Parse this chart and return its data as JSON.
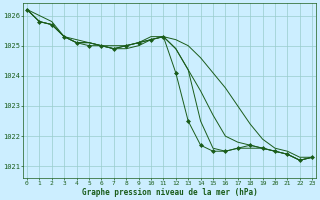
{
  "bg_color": "#cceeff",
  "grid_color": "#99cccc",
  "line_color": "#1a5c1a",
  "marker_color": "#1a5c1a",
  "label_color": "#1a5c1a",
  "xlabel": "Graphe pression niveau de la mer (hPa)",
  "ylim": [
    1020.6,
    1026.4
  ],
  "xlim": [
    -0.3,
    23.3
  ],
  "yticks": [
    1021,
    1022,
    1023,
    1024,
    1025,
    1026
  ],
  "xticks": [
    0,
    1,
    2,
    3,
    4,
    5,
    6,
    7,
    8,
    9,
    10,
    11,
    12,
    13,
    14,
    15,
    16,
    17,
    18,
    19,
    20,
    21,
    22,
    23
  ],
  "series": [
    {
      "y": [
        1026.2,
        1026.0,
        1025.8,
        1025.3,
        1025.2,
        1025.1,
        1025.0,
        1025.0,
        1025.0,
        1025.1,
        1025.3,
        1025.3,
        1025.2,
        1025.0,
        1024.6,
        1024.1,
        1023.6,
        1023.0,
        1022.4,
        1021.9,
        1021.6,
        1021.5,
        1021.3,
        1021.3
      ],
      "marker": false
    },
    {
      "y": [
        1026.2,
        1025.8,
        1025.7,
        1025.3,
        1025.1,
        1025.0,
        1025.0,
        1024.9,
        1025.0,
        1025.1,
        1025.2,
        1025.3,
        1024.1,
        1022.5,
        1021.7,
        1021.5,
        1021.5,
        1021.6,
        1021.7,
        1021.6,
        1021.5,
        1021.4,
        1021.2,
        1021.3
      ],
      "marker": true
    },
    {
      "y": [
        1026.2,
        1025.8,
        1025.7,
        1025.3,
        1025.1,
        1025.1,
        1025.0,
        1024.9,
        1025.0,
        1025.1,
        1025.2,
        1025.3,
        1024.9,
        1024.2,
        1023.5,
        1022.7,
        1022.0,
        1021.8,
        1021.7,
        1021.6,
        1021.5,
        1021.4,
        1021.2,
        1021.3
      ],
      "marker": false
    },
    {
      "y": [
        1026.2,
        1025.8,
        1025.7,
        1025.3,
        1025.1,
        1025.1,
        1025.0,
        1024.9,
        1024.9,
        1025.0,
        1025.2,
        1025.3,
        1024.9,
        1024.2,
        1022.5,
        1021.6,
        1021.5,
        1021.6,
        1021.6,
        1021.6,
        1021.5,
        1021.4,
        1021.2,
        1021.3
      ],
      "marker": false
    }
  ]
}
